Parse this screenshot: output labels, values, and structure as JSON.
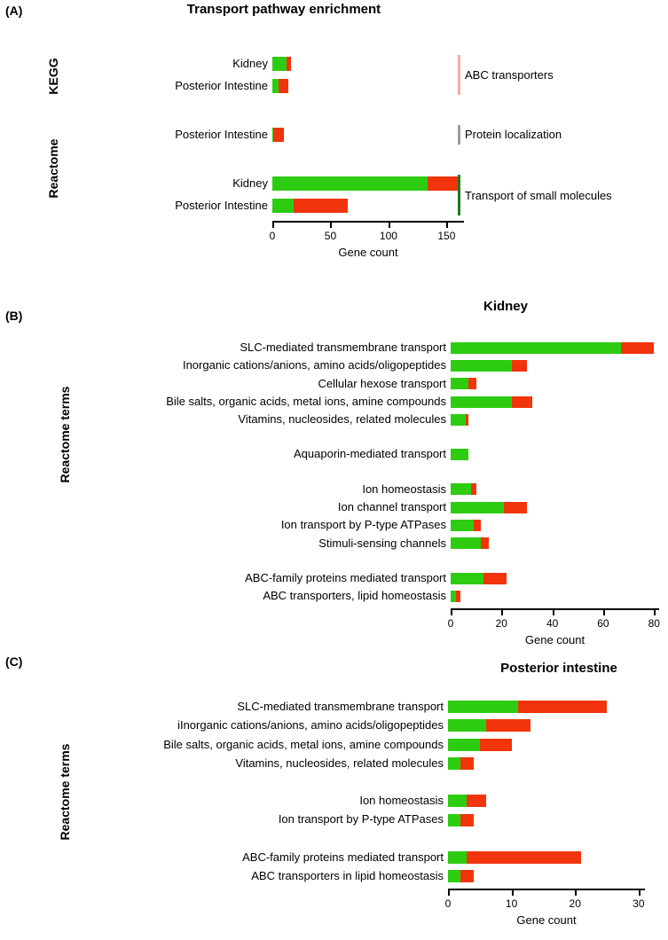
{
  "colors": {
    "green": "#2ecc11",
    "red": "#f1340c"
  },
  "panels": [
    {
      "tag": "(A)"
    },
    {
      "tag": "(B)"
    },
    {
      "tag": "(C)"
    }
  ],
  "chart_data": [
    {
      "id": "A",
      "type": "bar",
      "orientation": "horizontal",
      "stacked": true,
      "title": "Transport pathway enrichment",
      "xlabel": "Gene count",
      "xlim": [
        0,
        165
      ],
      "xticks": [
        0,
        50,
        100,
        150
      ],
      "series_names": [
        "green",
        "red"
      ],
      "sections": [
        {
          "axis_group": "KEGG",
          "clusters": [
            {
              "annotation": "ABC transporters",
              "annotation_color": "#f9a8a8",
              "rows": [
                {
                  "label": "Kidney",
                  "green": 12,
                  "red": 4
                },
                {
                  "label": "Posterior Intestine",
                  "green": 5,
                  "red": 9
                }
              ]
            }
          ]
        },
        {
          "axis_group": "Reactome",
          "clusters": [
            {
              "annotation": "Protein localization",
              "annotation_color": "#9c9c9c",
              "rows": [
                {
                  "label": "Posterior Intestine",
                  "green": 1,
                  "red": 9
                }
              ]
            },
            {
              "annotation": "Transport of small molecules",
              "annotation_color": "#1e7a1e",
              "rows": [
                {
                  "label": "Kidney",
                  "green": 134,
                  "red": 26
                },
                {
                  "label": "Posterior Intestine",
                  "green": 18,
                  "red": 47
                }
              ]
            }
          ]
        }
      ]
    },
    {
      "id": "B",
      "type": "bar",
      "orientation": "horizontal",
      "stacked": true,
      "title": "Kidney",
      "ylabel": "Reactome terms",
      "xlabel": "Gene count",
      "xlim": [
        0,
        82
      ],
      "xticks": [
        0,
        20,
        40,
        60,
        80
      ],
      "series_names": [
        "green",
        "red"
      ],
      "groups": [
        {
          "rows": [
            {
              "label": "SLC-mediated transmembrane transport",
              "green": 67,
              "red": 13
            },
            {
              "label": "Inorganic cations/anions, amino acids/oligopeptides",
              "green": 24,
              "red": 6
            },
            {
              "label": "Cellular hexose transport",
              "green": 7,
              "red": 3
            },
            {
              "label": "Bile salts, organic acids, metal ions, amine compounds",
              "green": 24,
              "red": 8
            },
            {
              "label": "Vitamins, nucleosides, related molecules",
              "green": 6,
              "red": 1
            }
          ]
        },
        {
          "rows": [
            {
              "label": "Aquaporin-mediated transport",
              "green": 7,
              "red": 0
            }
          ]
        },
        {
          "rows": [
            {
              "label": "Ion homeostasis",
              "green": 8,
              "red": 2
            },
            {
              "label": "Ion channel transport",
              "green": 21,
              "red": 9
            },
            {
              "label": "Ion transport by P-type ATPases",
              "green": 9,
              "red": 3
            },
            {
              "label": "Stimuli-sensing channels",
              "green": 12,
              "red": 3
            }
          ]
        },
        {
          "rows": [
            {
              "label": "ABC-family proteins mediated transport",
              "green": 13,
              "red": 9
            },
            {
              "label": "ABC transporters, lipid homeostasis",
              "green": 2,
              "red": 2
            }
          ]
        }
      ]
    },
    {
      "id": "C",
      "type": "bar",
      "orientation": "horizontal",
      "stacked": true,
      "title": "Posterior intestine",
      "ylabel": "Reactome terms",
      "xlabel": "Gene count",
      "xlim": [
        0,
        31
      ],
      "xticks": [
        0,
        10,
        20,
        30
      ],
      "series_names": [
        "green",
        "red"
      ],
      "groups": [
        {
          "rows": [
            {
              "label": "SLC-mediated transmembrane transport",
              "green": 11,
              "red": 14
            },
            {
              "label": "iInorganic cations/anions, amino acids/oligopeptides",
              "green": 6,
              "red": 7
            },
            {
              "label": "Bile salts, organic acids, metal ions, amine compounds",
              "green": 5,
              "red": 5
            },
            {
              "label": "Vitamins, nucleosides, related molecules",
              "green": 2,
              "red": 2
            }
          ]
        },
        {
          "rows": [
            {
              "label": "Ion homeostasis",
              "green": 3,
              "red": 3
            },
            {
              "label": "Ion transport by P-type ATPases",
              "green": 2,
              "red": 2
            }
          ]
        },
        {
          "rows": [
            {
              "label": "ABC-family proteins mediated transport",
              "green": 3,
              "red": 18
            },
            {
              "label": "ABC transporters in lipid homeostasis",
              "green": 2,
              "red": 2
            }
          ]
        }
      ]
    }
  ]
}
